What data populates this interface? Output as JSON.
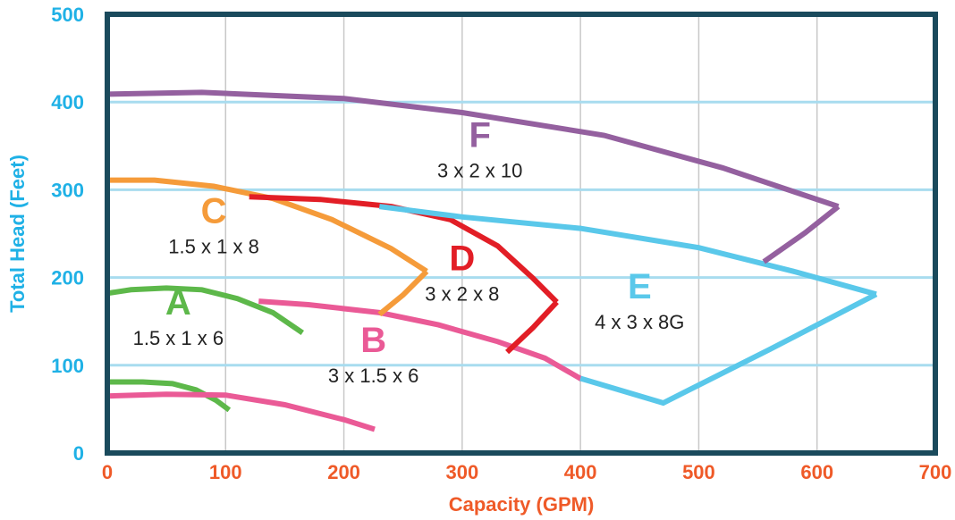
{
  "chart_data": {
    "type": "line",
    "title": "",
    "xlabel": "Capacity (GPM)",
    "ylabel": "Total Head  (Feet)",
    "xlim": [
      0,
      700
    ],
    "ylim": [
      0,
      500
    ],
    "x_ticks": [
      "0",
      "100",
      "200",
      "300",
      "400",
      "500",
      "600",
      "700"
    ],
    "y_ticks": [
      "0",
      "100",
      "200",
      "300",
      "400",
      "500"
    ],
    "grid": {
      "horizontal": true,
      "vertical": true
    },
    "colors": {
      "frame": "#1a4a5c",
      "grid_h": "#a8dcef",
      "grid_v": "#c8c8c8",
      "x_axis_text": "#ef5a28",
      "y_axis_text": "#1fb1e6"
    },
    "regions": [
      {
        "letter": "A",
        "size": "1.5 x 1 x 6",
        "color": "#5db84a",
        "label_x": 60,
        "label_y": 158,
        "top": [
          [
            0,
            182
          ],
          [
            20,
            186
          ],
          [
            50,
            188
          ],
          [
            80,
            186
          ],
          [
            110,
            176
          ],
          [
            140,
            160
          ],
          [
            165,
            137
          ]
        ],
        "bottom": [
          [
            0,
            81
          ],
          [
            30,
            81
          ],
          [
            55,
            79
          ],
          [
            75,
            72
          ],
          [
            92,
            60
          ],
          [
            103,
            49
          ]
        ]
      },
      {
        "letter": "B",
        "size": "3 x 1.5 x 6",
        "color": "#ea5a96",
        "label_x": 225,
        "label_y": 115,
        "top": [
          [
            128,
            173
          ],
          [
            170,
            169
          ],
          [
            230,
            160
          ],
          [
            280,
            146
          ],
          [
            330,
            127
          ],
          [
            370,
            108
          ],
          [
            401,
            84
          ]
        ],
        "bottom": [
          [
            0,
            65
          ],
          [
            50,
            67
          ],
          [
            100,
            66
          ],
          [
            150,
            55
          ],
          [
            200,
            38
          ],
          [
            226,
            27
          ]
        ]
      },
      {
        "letter": "C",
        "size": "1.5 x 1 x 8",
        "color": "#f59b3a",
        "label_x": 90,
        "label_y": 262,
        "top": [
          [
            0,
            311
          ],
          [
            40,
            311
          ],
          [
            90,
            304
          ],
          [
            140,
            290
          ],
          [
            190,
            266
          ],
          [
            240,
            233
          ],
          [
            270,
            207
          ]
        ],
        "bottom": [
          [
            230,
            158
          ],
          [
            250,
            180
          ],
          [
            270,
            207
          ]
        ]
      },
      {
        "letter": "D",
        "size": "3 x 2 x 8",
        "color": "#e21e26",
        "label_x": 300,
        "label_y": 208,
        "top": [
          [
            120,
            292
          ],
          [
            180,
            289
          ],
          [
            240,
            281
          ],
          [
            290,
            266
          ],
          [
            330,
            236
          ],
          [
            360,
            199
          ],
          [
            380,
            172
          ]
        ],
        "bottom": [
          [
            338,
            115
          ],
          [
            360,
            143
          ],
          [
            380,
            172
          ]
        ]
      },
      {
        "letter": "E",
        "size": "4 x 3 x 8G",
        "color": "#5ac8ea",
        "label_x": 450,
        "label_y": 176,
        "top": [
          [
            230,
            281
          ],
          [
            300,
            269
          ],
          [
            400,
            256
          ],
          [
            500,
            234
          ],
          [
            580,
            207
          ],
          [
            650,
            181
          ]
        ],
        "bottom": [
          [
            400,
            85
          ],
          [
            470,
            57
          ],
          [
            560,
            118
          ],
          [
            650,
            181
          ]
        ]
      },
      {
        "letter": "F",
        "size": "3 x 2 x 10",
        "color": "#94609f",
        "label_x": 315,
        "label_y": 349,
        "top": [
          [
            0,
            409
          ],
          [
            80,
            411
          ],
          [
            200,
            404
          ],
          [
            300,
            388
          ],
          [
            420,
            362
          ],
          [
            520,
            325
          ],
          [
            580,
            298
          ],
          [
            618,
            281
          ]
        ],
        "bottom": [
          [
            555,
            218
          ],
          [
            590,
            251
          ],
          [
            618,
            281
          ]
        ]
      }
    ]
  }
}
